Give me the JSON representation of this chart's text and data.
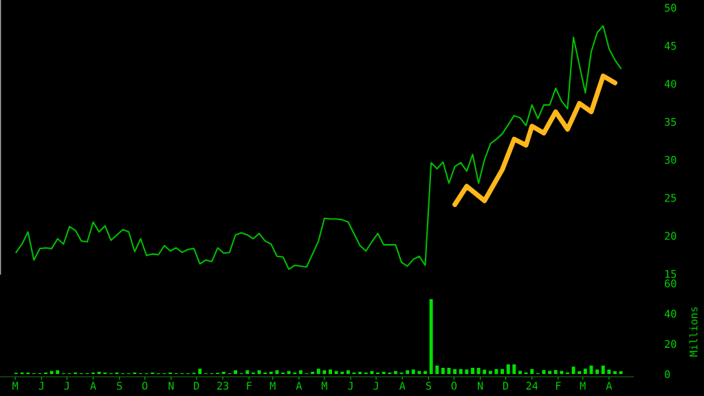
{
  "chart_data": {
    "type": "line",
    "xlim": [
      "2022-04-13",
      "2024-04-30"
    ],
    "ylim": [
      1.45,
      51
    ],
    "yticks": [
      15,
      20,
      25,
      30,
      35,
      40,
      45,
      50
    ],
    "y2lim": [
      -1.8,
      247.3
    ],
    "y2ticks": [
      0,
      20,
      40,
      60
    ],
    "y2label": "Millions",
    "grid": false,
    "legend": false,
    "marker": "none",
    "line_style": "solid",
    "xticks": [
      {
        "value": "2022-05",
        "label": "M"
      },
      {
        "value": "2022-06",
        "label": "J"
      },
      {
        "value": "2022-07",
        "label": "J"
      },
      {
        "value": "2022-08",
        "label": "A"
      },
      {
        "value": "2022-09",
        "label": "S"
      },
      {
        "value": "2022-10",
        "label": "O"
      },
      {
        "value": "2022-11",
        "label": "N"
      },
      {
        "value": "2022-12",
        "label": "D"
      },
      {
        "value": "2023-01",
        "label": "23"
      },
      {
        "value": "2023-02",
        "label": "F"
      },
      {
        "value": "2023-03",
        "label": "M"
      },
      {
        "value": "2023-04",
        "label": "A"
      },
      {
        "value": "2023-05",
        "label": "M"
      },
      {
        "value": "2023-06",
        "label": "J"
      },
      {
        "value": "2023-07",
        "label": "J"
      },
      {
        "value": "2023-08",
        "label": "A"
      },
      {
        "value": "2023-09",
        "label": "S"
      },
      {
        "value": "2023-10",
        "label": "O"
      },
      {
        "value": "2023-11",
        "label": "N"
      },
      {
        "value": "2023-12",
        "label": "D"
      },
      {
        "value": "2024-01",
        "label": "24"
      },
      {
        "value": "2024-02",
        "label": "F"
      },
      {
        "value": "2024-03",
        "label": "M"
      },
      {
        "value": "2024-04",
        "label": "A"
      }
    ],
    "series": [
      {
        "color": "#00c000",
        "x": [
          "2022-05-02",
          "2022-05-09",
          "2022-05-16",
          "2022-05-23",
          "2022-05-30",
          "2022-06-06",
          "2022-06-13",
          "2022-06-20",
          "2022-06-27",
          "2022-07-04",
          "2022-07-11",
          "2022-07-18",
          "2022-07-25",
          "2022-08-01",
          "2022-08-08",
          "2022-08-15",
          "2022-08-22",
          "2022-09-05",
          "2022-09-12",
          "2022-09-19",
          "2022-09-26",
          "2022-10-03",
          "2022-10-10",
          "2022-10-17",
          "2022-10-24",
          "2022-10-31",
          "2022-11-07",
          "2022-11-14",
          "2022-11-21",
          "2022-11-28",
          "2022-12-05",
          "2022-12-12",
          "2022-12-19",
          "2022-12-26",
          "2023-01-02",
          "2023-01-09",
          "2023-01-16",
          "2023-01-23",
          "2023-01-30",
          "2023-02-06",
          "2023-02-13",
          "2023-02-20",
          "2023-02-27",
          "2023-03-06",
          "2023-03-13",
          "2023-03-20",
          "2023-03-27",
          "2023-04-10",
          "2023-04-24",
          "2023-05-01",
          "2023-05-08",
          "2023-05-15",
          "2023-05-22",
          "2023-05-29",
          "2023-06-12",
          "2023-06-19",
          "2023-06-26",
          "2023-07-03",
          "2023-07-10",
          "2023-07-24",
          "2023-07-31",
          "2023-08-07",
          "2023-08-14",
          "2023-08-21",
          "2023-08-28",
          "2023-09-04",
          "2023-09-11",
          "2023-09-18",
          "2023-09-25",
          "2023-10-02",
          "2023-10-09",
          "2023-10-16",
          "2023-10-23",
          "2023-10-30",
          "2023-11-06",
          "2023-11-13",
          "2023-11-20",
          "2023-11-27",
          "2023-12-11",
          "2023-12-18",
          "2023-12-25",
          "2024-01-01",
          "2024-01-08",
          "2024-01-15",
          "2024-01-22",
          "2024-01-29",
          "2024-02-05",
          "2024-02-12",
          "2024-02-19",
          "2024-03-04",
          "2024-03-11",
          "2024-03-18",
          "2024-03-25",
          "2024-04-01",
          "2024-04-08",
          "2024-04-15"
        ],
        "values": [
          17.8,
          18.9,
          20.5,
          16.8,
          18.3,
          18.4,
          18.3,
          19.6,
          18.9,
          21.2,
          20.7,
          19.3,
          19.2,
          21.8,
          20.5,
          21.3,
          19.4,
          20.8,
          20.5,
          17.9,
          19.6,
          17.4,
          17.6,
          17.5,
          18.7,
          18.0,
          18.4,
          17.8,
          18.2,
          18.3,
          16.3,
          16.8,
          16.6,
          18.4,
          17.7,
          17.8,
          20.1,
          20.4,
          20.1,
          19.6,
          20.3,
          19.3,
          18.9,
          17.3,
          17.2,
          15.6,
          16.1,
          15.9,
          19.3,
          22.3,
          22.2,
          22.2,
          22.1,
          21.8,
          18.7,
          18.0,
          19.2,
          20.3,
          18.8,
          18.8,
          16.5,
          16.0,
          16.9,
          17.3,
          16.1,
          29.6,
          28.8,
          29.7,
          26.9,
          29.1,
          29.6,
          28.5,
          30.7,
          26.9,
          30.0,
          32.1,
          32.7,
          33.4,
          35.8,
          35.5,
          34.5,
          37.2,
          35.4,
          37.2,
          37.2,
          39.4,
          37.7,
          36.7,
          46.1,
          38.8,
          44.2,
          46.7,
          47.6,
          44.6,
          43.1,
          42.0
        ]
      },
      {
        "color": "#ffb81c",
        "x": [
          "2023-10-02",
          "2023-10-16",
          "2023-11-06",
          "2023-11-27",
          "2023-12-11",
          "2023-12-25",
          "2024-01-01",
          "2024-01-15",
          "2024-01-29",
          "2024-02-12",
          "2024-02-26",
          "2024-03-11",
          "2024-03-25",
          "2024-04-08"
        ],
        "values": [
          24.1,
          26.5,
          24.6,
          28.7,
          32.7,
          31.9,
          34.4,
          33.5,
          36.3,
          34.0,
          37.4,
          36.3,
          41.0,
          40.1
        ]
      },
      {
        "type": "bar",
        "axis": "y2",
        "color": "#00e000",
        "x": [
          "2022-05-02",
          "2022-05-09",
          "2022-05-16",
          "2022-05-23",
          "2022-05-30",
          "2022-06-06",
          "2022-06-13",
          "2022-06-20",
          "2022-06-27",
          "2022-07-04",
          "2022-07-11",
          "2022-07-18",
          "2022-07-25",
          "2022-08-01",
          "2022-08-08",
          "2022-08-15",
          "2022-08-22",
          "2022-08-29",
          "2022-09-05",
          "2022-09-12",
          "2022-09-19",
          "2022-09-26",
          "2022-10-03",
          "2022-10-10",
          "2022-10-17",
          "2022-10-24",
          "2022-10-31",
          "2022-11-07",
          "2022-11-14",
          "2022-11-21",
          "2022-11-28",
          "2022-12-05",
          "2022-12-12",
          "2022-12-19",
          "2022-12-26",
          "2023-01-02",
          "2023-01-09",
          "2023-01-16",
          "2023-01-23",
          "2023-01-30",
          "2023-02-06",
          "2023-02-13",
          "2023-02-20",
          "2023-02-27",
          "2023-03-06",
          "2023-03-13",
          "2023-03-20",
          "2023-03-27",
          "2023-04-03",
          "2023-04-10",
          "2023-04-17",
          "2023-04-24",
          "2023-05-01",
          "2023-05-08",
          "2023-05-15",
          "2023-05-22",
          "2023-05-29",
          "2023-06-05",
          "2023-06-12",
          "2023-06-19",
          "2023-06-26",
          "2023-07-03",
          "2023-07-10",
          "2023-07-17",
          "2023-07-24",
          "2023-07-31",
          "2023-08-07",
          "2023-08-14",
          "2023-08-21",
          "2023-08-28",
          "2023-09-04",
          "2023-09-11",
          "2023-09-18",
          "2023-09-25",
          "2023-10-02",
          "2023-10-09",
          "2023-10-16",
          "2023-10-23",
          "2023-10-30",
          "2023-11-06",
          "2023-11-13",
          "2023-11-20",
          "2023-11-27",
          "2023-12-04",
          "2023-12-11",
          "2023-12-18",
          "2023-12-25",
          "2024-01-01",
          "2024-01-08",
          "2024-01-15",
          "2024-01-22",
          "2024-01-29",
          "2024-02-05",
          "2024-02-12",
          "2024-02-19",
          "2024-02-26",
          "2024-03-04",
          "2024-03-11",
          "2024-03-18",
          "2024-03-25",
          "2024-04-01",
          "2024-04-08",
          "2024-04-15"
        ],
        "values": [
          0.8,
          1.0,
          1.0,
          0.5,
          0.5,
          1.0,
          2.0,
          2.5,
          0.5,
          0.5,
          1.0,
          0.5,
          0.5,
          1.0,
          1.5,
          1.0,
          0.5,
          1.0,
          0.5,
          0.5,
          1.0,
          0.5,
          0.5,
          1.0,
          0.5,
          0.5,
          1.0,
          0.5,
          0.5,
          0.5,
          0.8,
          3.5,
          0.5,
          0.5,
          0.8,
          1.5,
          0.5,
          2.5,
          0.5,
          2.5,
          1.0,
          2.5,
          1.0,
          1.5,
          2.5,
          1.0,
          2.0,
          1.0,
          2.5,
          0.5,
          1.5,
          3.5,
          2.5,
          3.0,
          2.0,
          1.5,
          2.5,
          1.0,
          1.5,
          1.0,
          2.0,
          1.0,
          1.5,
          1.0,
          2.0,
          1.0,
          2.5,
          3.0,
          2.0,
          2.0,
          49.5,
          5.6,
          4.1,
          4.1,
          3.3,
          3.3,
          3.0,
          4.1,
          4.1,
          2.9,
          2.1,
          3.3,
          3.3,
          6.4,
          6.4,
          2.1,
          1.1,
          3.3,
          0.6,
          2.6,
          2.1,
          2.6,
          2.1,
          1.1,
          4.9,
          1.8,
          3.6,
          5.6,
          3.0,
          5.6,
          3.0,
          1.8,
          1.8
        ]
      }
    ]
  }
}
